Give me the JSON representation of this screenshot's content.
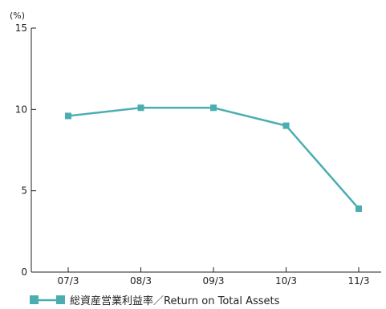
{
  "chart_data": {
    "type": "line",
    "unit_label": "(%)",
    "categories": [
      "07/3",
      "08/3",
      "09/3",
      "10/3",
      "11/3"
    ],
    "series": [
      {
        "name": "総資産営業利益率／Return on Total Assets",
        "values": [
          9.6,
          10.1,
          10.1,
          9.0,
          3.9
        ],
        "color": "#4aaeb0"
      }
    ],
    "ylim": [
      0,
      15
    ],
    "yticks": [
      0,
      5,
      10,
      15
    ],
    "grid": false,
    "legend": "bottom-left"
  }
}
